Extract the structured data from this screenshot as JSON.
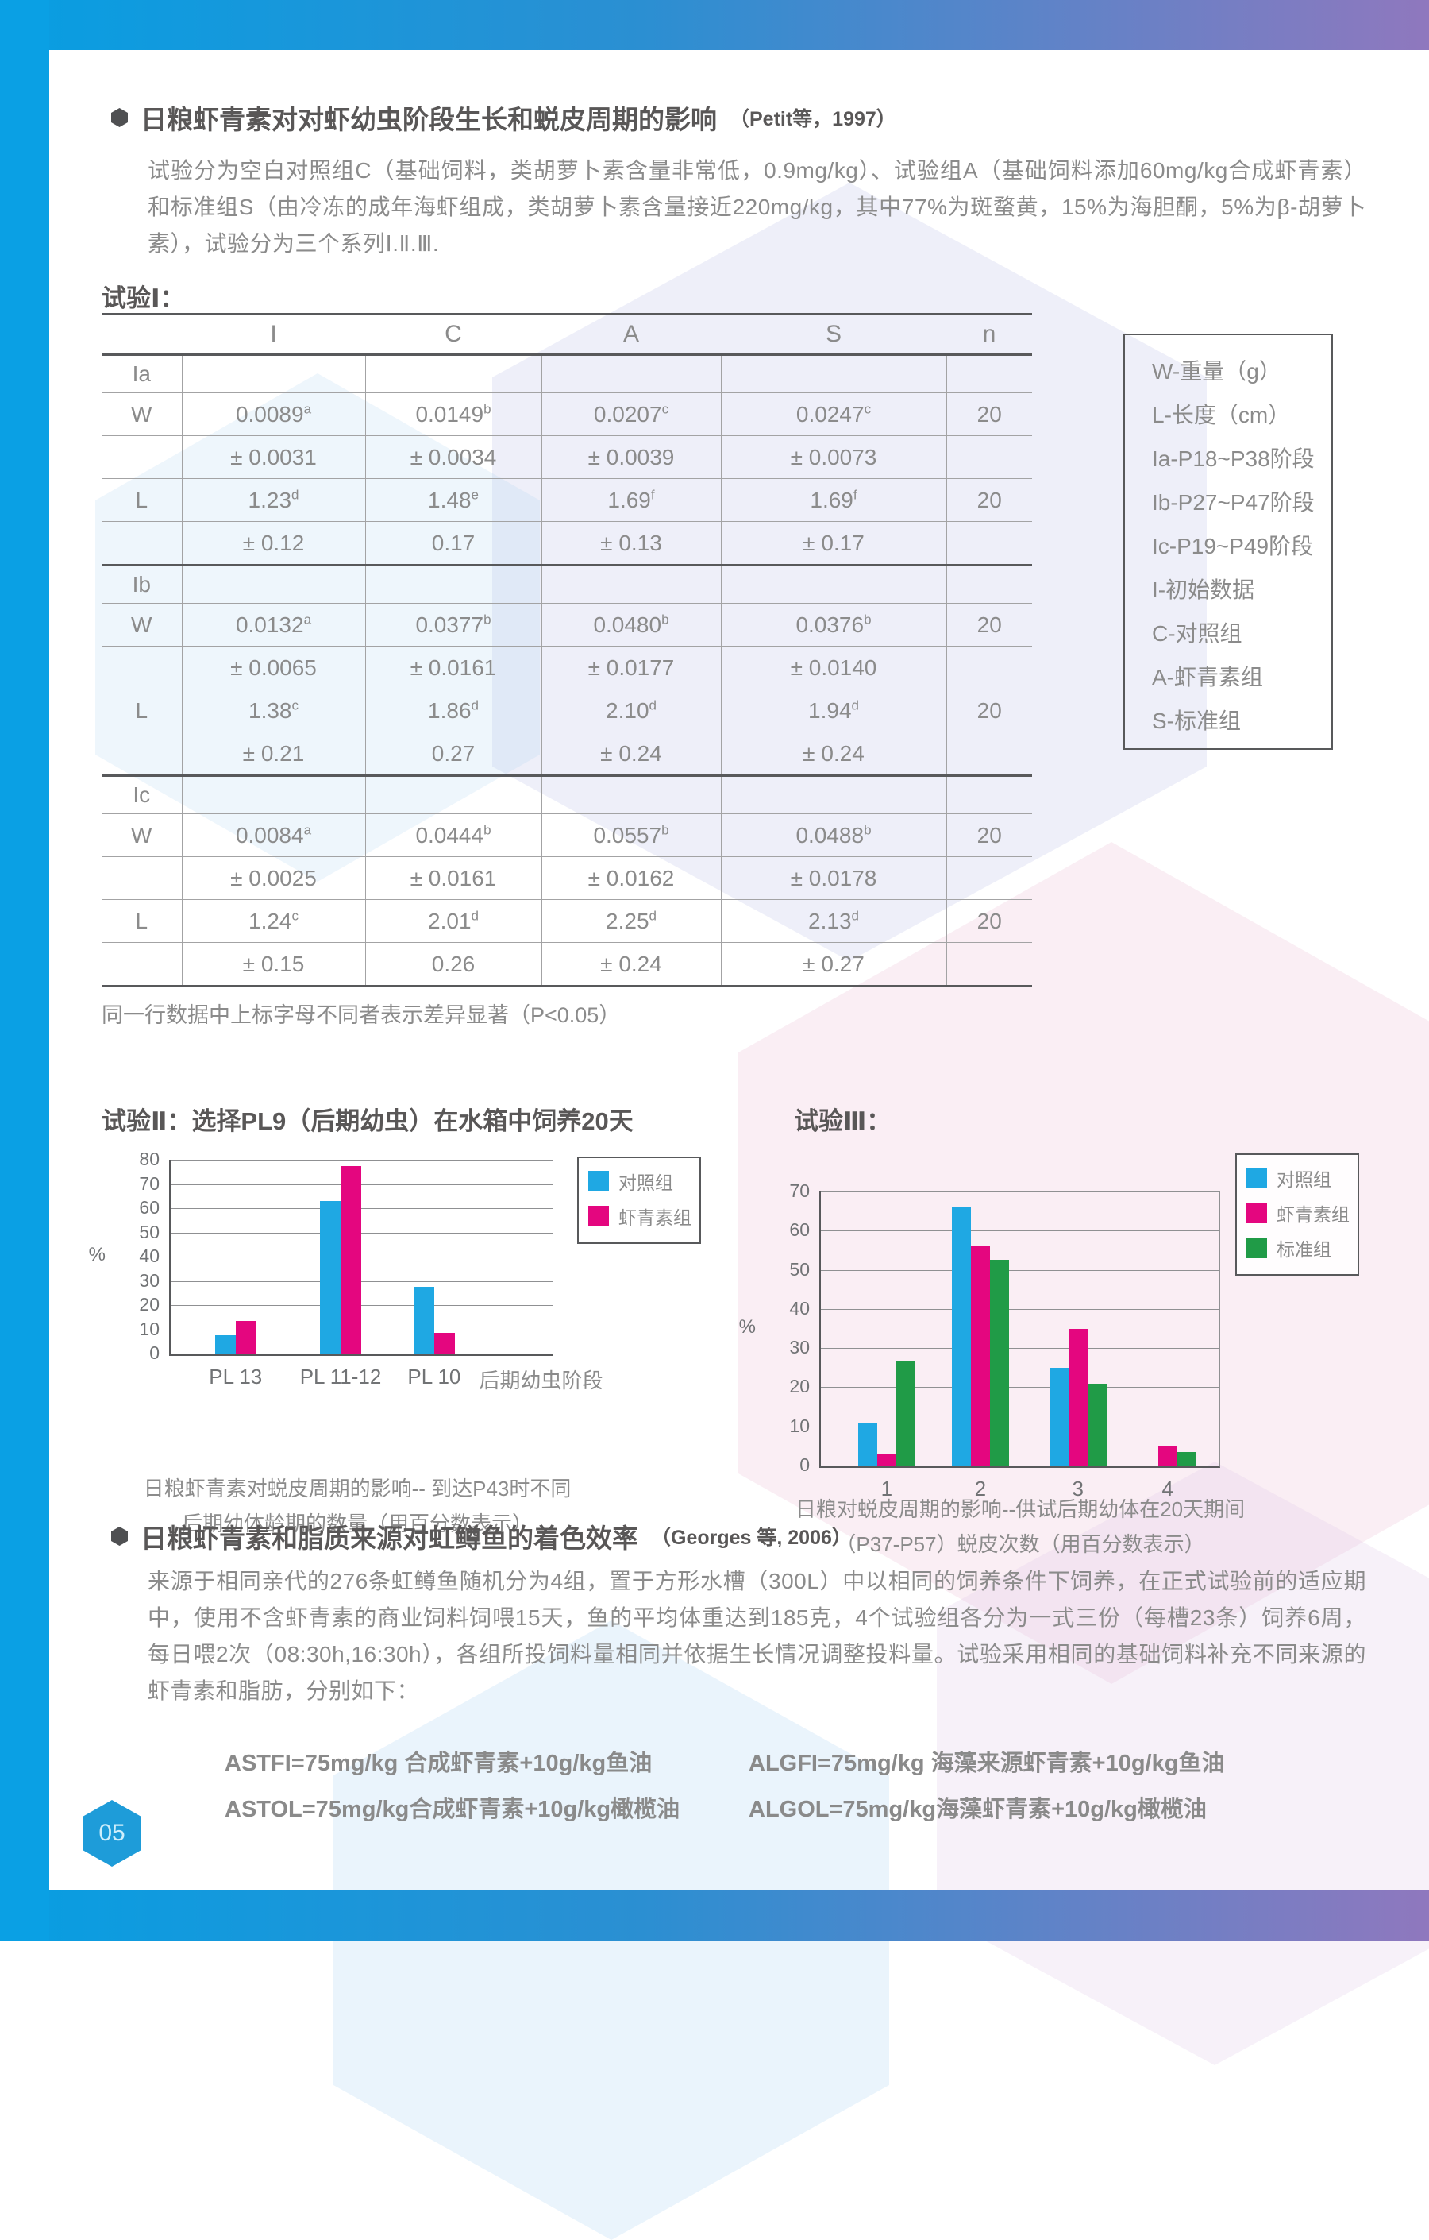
{
  "page_number": "05",
  "section1": {
    "title": "日粮虾青素对对虾幼虫阶段生长和蜕皮周期的影响",
    "ref": "（Petit等，1997）",
    "body": "试验分为空白对照组C（基础饲料，类胡萝卜素含量非常低，0.9mg/kg）、试验组A（基础饲料添加60mg/kg合成虾青素）和标准组S（由冷冻的成年海虾组成，类胡萝卜素含量接近220mg/kg，其中77%为斑蝥黄，15%为海胆酮，5%为β-胡萝卜素），试验分为三个系列Ⅰ.Ⅱ.Ⅲ."
  },
  "experiment1": {
    "label": "试验Ⅰ：",
    "note": "同一行数据中上标字母不同者表示差异显著（P<0.05）",
    "table": {
      "columns": [
        "",
        "I",
        "C",
        "A",
        "S",
        "n"
      ],
      "rows": [
        {
          "label": "Ia",
          "sec": true,
          "values": [
            "",
            "",
            "",
            ""
          ],
          "n": ""
        },
        {
          "label": "W",
          "values": [
            "0.0089^a",
            "0.0149^b",
            "0.0207^c",
            "0.0247^c"
          ],
          "n": "20"
        },
        {
          "label": "",
          "values": [
            "± 0.0031",
            "± 0.0034",
            "± 0.0039",
            "± 0.0073"
          ],
          "n": ""
        },
        {
          "label": "L",
          "values": [
            "1.23^d",
            "1.48^e",
            "1.69^f",
            "1.69^f"
          ],
          "n": "20"
        },
        {
          "label": "",
          "values": [
            "± 0.12",
            "0.17",
            "± 0.13",
            "± 0.17"
          ],
          "n": ""
        },
        {
          "label": "Ib",
          "sec": true,
          "values": [
            "",
            "",
            "",
            ""
          ],
          "n": ""
        },
        {
          "label": "W",
          "values": [
            "0.0132^a",
            "0.0377^b",
            "0.0480^b",
            "0.0376^b"
          ],
          "n": "20"
        },
        {
          "label": "",
          "values": [
            "± 0.0065",
            "± 0.0161",
            "± 0.0177",
            "± 0.0140"
          ],
          "n": ""
        },
        {
          "label": "L",
          "values": [
            "1.38^c",
            "1.86^d",
            "2.10^d",
            "1.94^d"
          ],
          "n": "20"
        },
        {
          "label": "",
          "values": [
            "± 0.21",
            "0.27",
            "± 0.24",
            "± 0.24"
          ],
          "n": ""
        },
        {
          "label": "Ic",
          "sec": true,
          "values": [
            "",
            "",
            "",
            ""
          ],
          "n": ""
        },
        {
          "label": "W",
          "values": [
            "0.0084^a",
            "0.0444^b",
            "0.0557^b",
            "0.0488^b"
          ],
          "n": "20"
        },
        {
          "label": "",
          "values": [
            "± 0.0025",
            "± 0.0161",
            "± 0.0162",
            "± 0.0178"
          ],
          "n": ""
        },
        {
          "label": "L",
          "values": [
            "1.24^c",
            "2.01^d",
            "2.25^d",
            "2.13^d"
          ],
          "n": "20"
        },
        {
          "label": "",
          "values": [
            "± 0.15",
            "0.26",
            "± 0.24",
            "± 0.27"
          ],
          "n": ""
        }
      ],
      "key_box": [
        "W-重量（g）",
        "L-长度（cm）",
        "Ia-P18~P38阶段",
        "Ib-P27~P47阶段",
        "Ic-P19~P49阶段",
        "I-初始数据",
        "C-对照组",
        "A-虾青素组",
        "S-标准组"
      ]
    }
  },
  "chart_data": [
    {
      "type": "bar",
      "title": "试验Ⅱ：选择PL9（后期幼虫）在水箱中饲养20天",
      "categories": [
        "PL 13",
        "PL 11-12",
        "PL 10"
      ],
      "series": [
        {
          "name": "对照组",
          "color": "#1fa8e3",
          "values": [
            7.5,
            63,
            27.5
          ]
        },
        {
          "name": "虾青素组",
          "color": "#e4067f",
          "values": [
            13.5,
            77.5,
            8.5
          ]
        }
      ],
      "ylabel": "%",
      "ylim": [
        0,
        80
      ],
      "ytick_step": 10,
      "grid": true,
      "legend_position": "right",
      "xlabel": "后期幼虫阶段",
      "caption_lines": [
        "日粮虾青素对蜕皮周期的影响-- 到达P43时不同",
        "后期幼体龄期的数量（用百分数表示）"
      ]
    },
    {
      "type": "bar",
      "title": "试验Ⅲ：",
      "categories": [
        "1",
        "2",
        "3",
        "4"
      ],
      "series": [
        {
          "name": "对照组",
          "color": "#1fa8e3",
          "values": [
            11,
            66,
            25,
            0
          ]
        },
        {
          "name": "虾青素组",
          "color": "#e4067f",
          "values": [
            3,
            56,
            35,
            5
          ]
        },
        {
          "name": "标准组",
          "color": "#209b47",
          "values": [
            26.5,
            52.5,
            21,
            3.5
          ]
        }
      ],
      "ylabel": "%",
      "ylim": [
        0,
        70
      ],
      "ytick_step": 10,
      "grid": true,
      "legend_position": "right",
      "xlabel": "",
      "caption_lines": [
        "日粮对蜕皮周期的影响--供试后期幼体在20天期间",
        "（P37-P57）蜕皮次数（用百分数表示）"
      ]
    }
  ],
  "section2": {
    "title": "日粮虾青素和脂质来源对虹鳟鱼的着色效率",
    "ref": "（Georges 等, 2006）",
    "body": "来源于相同亲代的276条虹鳟鱼随机分为4组，置于方形水槽（300L）中以相同的饲养条件下饲养，在正式试验前的适应期中，使用不含虾青素的商业饲料饲喂15天，鱼的平均体重达到185克，4个试验组各分为一式三份（每槽23条）饲养6周，每日喂2次（08:30h,16:30h），各组所投饲料量相同并依据生长情况调整投料量。试验采用相同的基础饲料补充不同来源的虾青素和脂肪，分别如下：",
    "formulas": [
      "ASTFI=75mg/kg 合成虾青素+10g/kg鱼油",
      "ASTOL=75mg/kg合成虾青素+10g/kg橄榄油",
      "ALGFI=75mg/kg 海藻来源虾青素+10g/kg鱼油",
      "ALGOL=75mg/kg海藻虾青素+10g/kg橄榄油"
    ]
  },
  "colors": {
    "accent_blue": "#0aa0e4",
    "gradient_purple": "#8f78be",
    "control_blue": "#1fa8e3",
    "astaxanthin_magenta": "#e4067f",
    "standard_green": "#209b47"
  }
}
